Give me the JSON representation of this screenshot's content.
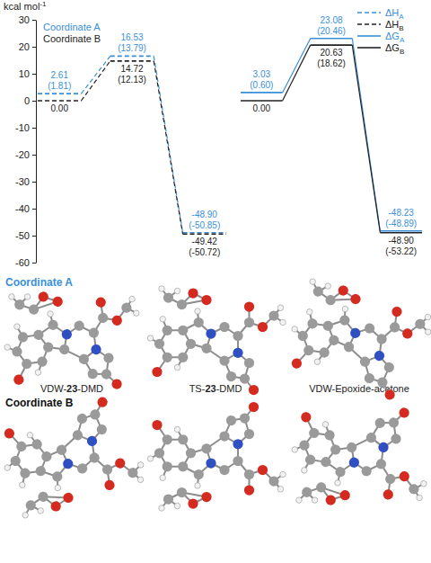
{
  "chart_data": [
    {
      "type": "line",
      "ylabel": "kcal mol-1",
      "categories": [
        null,
        null,
        null
      ],
      "ylim": [
        -60,
        30
      ],
      "yticks": [
        -60,
        -50,
        -40,
        -30,
        -20,
        -10,
        0,
        10,
        20,
        30
      ],
      "tick_labels": "y",
      "legend": "top-right",
      "data_labels": true,
      "annotations": [
        {
          "text": "Coordinate A",
          "color": "#3a8fd9"
        },
        {
          "text": "Coordinate B",
          "color": "#222222"
        }
      ],
      "series": [
        {
          "name": "ΔHA",
          "color": "#3a8fd9",
          "line_style": "dashed",
          "values": [
            2.61,
            16.53,
            -48.9
          ],
          "value_labels": [
            "2.61",
            "16.53",
            "-48.90"
          ],
          "alt_values": [
            1.81,
            13.79,
            -50.85
          ],
          "alt_value_labels": [
            "(1.81)",
            "(13.79)",
            "(-50.85)"
          ]
        },
        {
          "name": "ΔHB",
          "color": "#222222",
          "line_style": "dashed",
          "values": [
            0.0,
            14.72,
            -49.42
          ],
          "value_labels": [
            "0.00",
            "14.72",
            "-49.42"
          ],
          "alt_values": [
            null,
            12.13,
            -50.72
          ],
          "alt_value_labels": [
            null,
            "(12.13)",
            "(-50.72)"
          ]
        }
      ]
    },
    {
      "type": "line",
      "categories": [
        null,
        null,
        null
      ],
      "ylim": [
        -60,
        30
      ],
      "tick_labels": false,
      "legend": "top-right",
      "data_labels": true,
      "series": [
        {
          "name": "ΔGA",
          "color": "#3a8fd9",
          "line_style": "solid",
          "values": [
            3.03,
            23.08,
            -48.23
          ],
          "value_labels": [
            "3.03",
            "23.08",
            "-48.23"
          ],
          "alt_values": [
            0.6,
            20.46,
            -48.89
          ],
          "alt_value_labels": [
            "(0.60)",
            "(20.46)",
            "(-48.89)"
          ]
        },
        {
          "name": "ΔGB",
          "color": "#222222",
          "line_style": "solid",
          "values": [
            0.0,
            20.63,
            -48.9
          ],
          "value_labels": [
            "0.00",
            "20.63",
            "-48.90"
          ],
          "alt_values": [
            null,
            18.62,
            -53.22
          ],
          "alt_value_labels": [
            null,
            "(18.62)",
            "(-53.22)"
          ]
        }
      ]
    }
  ],
  "structures": {
    "rows": [
      {
        "title": "Coordinate A",
        "color": "#3a8fd9",
        "labels": [
          "VDW-23-DMD",
          "TS-23-DMD",
          "VDW-Epoxide-acetone"
        ]
      },
      {
        "title": "Coordinate B",
        "color": "#111111"
      }
    ]
  }
}
